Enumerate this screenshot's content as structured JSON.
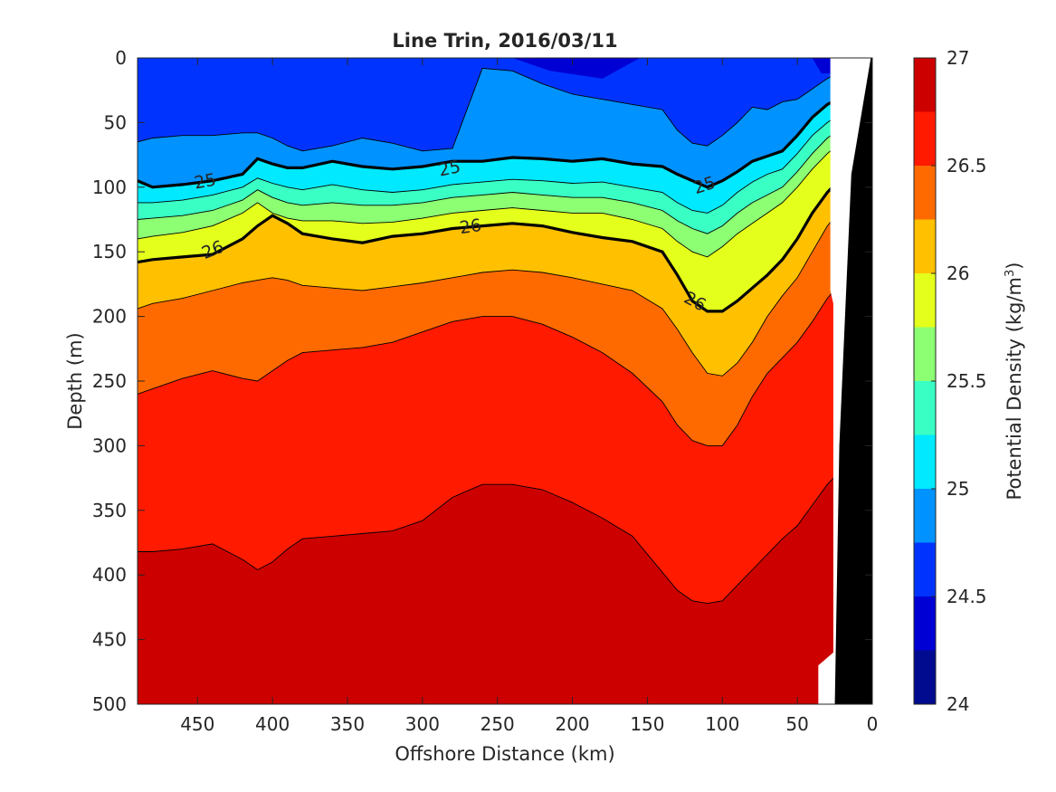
{
  "chart_data": {
    "type": "contourf",
    "title": "Line Trin, 2016/03/11",
    "xlabel": "Offshore Distance (km)",
    "ylabel": "Depth (m)",
    "colorbar_label": "Potential Density (kg/m",
    "colorbar_label_sup": "3",
    "colorbar_label_end": ")",
    "x_reversed": true,
    "y_reversed": true,
    "xlim": [
      490,
      0
    ],
    "ylim": [
      500,
      0
    ],
    "x_ticks": [
      450,
      400,
      350,
      300,
      250,
      200,
      150,
      100,
      50,
      0
    ],
    "x_tick_labels": [
      "450",
      "400",
      "350",
      "300",
      "250",
      "200",
      "150",
      "100",
      "50",
      "0"
    ],
    "y_ticks": [
      0,
      50,
      100,
      150,
      200,
      250,
      300,
      350,
      400,
      450,
      500
    ],
    "y_tick_labels": [
      "0",
      "50",
      "100",
      "150",
      "200",
      "250",
      "300",
      "350",
      "400",
      "450",
      "500"
    ],
    "colorbar_range": [
      24,
      27
    ],
    "colorbar_ticks": [
      27,
      26.5,
      26,
      25.5,
      25,
      24.5,
      24
    ],
    "colorbar_tick_labels": [
      "27",
      "26.5",
      "26",
      "25.5",
      "25",
      "24.5",
      "24"
    ],
    "levels": [
      24.25,
      24.5,
      24.75,
      25,
      25.25,
      25.5,
      25.75,
      26,
      26.25,
      26.5,
      26.75
    ],
    "level_colors": [
      "#000b90",
      "#0000d5",
      "#0034fe",
      "#0092fe",
      "#00e9ff",
      "#39ffc5",
      "#8cff73",
      "#e4ff1b",
      "#ffc000",
      "#ff6a00",
      "#ff1a00",
      "#cd0000"
    ],
    "labeled_contours": [
      {
        "value": 25,
        "label": "25"
      },
      {
        "value": 26,
        "label": "26"
      }
    ],
    "isopycnal_depths": {
      "x_km": [
        490,
        480,
        460,
        440,
        420,
        410,
        400,
        390,
        380,
        360,
        340,
        320,
        300,
        280,
        260,
        240,
        220,
        200,
        180,
        160,
        140,
        130,
        120,
        110,
        100,
        90,
        80,
        70,
        60,
        50,
        40,
        30,
        20
      ],
      "sigma_24_75": [
        65,
        62,
        60,
        60,
        58,
        58,
        62,
        68,
        72,
        68,
        62,
        66,
        72,
        70,
        8,
        10,
        20,
        28,
        32,
        36,
        40,
        56,
        66,
        68,
        60,
        50,
        38,
        40,
        34,
        32,
        24,
        16,
        10
      ],
      "sigma_25_00": [
        95,
        100,
        98,
        95,
        90,
        78,
        82,
        85,
        85,
        80,
        84,
        86,
        84,
        80,
        80,
        77,
        78,
        80,
        78,
        82,
        84,
        90,
        95,
        100,
        95,
        88,
        80,
        76,
        72,
        60,
        46,
        36,
        30
      ],
      "sigma_25_25": [
        112,
        112,
        110,
        106,
        100,
        93,
        97,
        100,
        102,
        98,
        102,
        104,
        102,
        98,
        96,
        94,
        95,
        97,
        96,
        100,
        104,
        112,
        118,
        120,
        114,
        104,
        96,
        90,
        86,
        74,
        60,
        50,
        42
      ],
      "sigma_25_50": [
        125,
        124,
        122,
        118,
        110,
        102,
        108,
        112,
        114,
        112,
        114,
        114,
        112,
        108,
        106,
        104,
        106,
        108,
        108,
        112,
        118,
        126,
        132,
        136,
        130,
        120,
        112,
        106,
        100,
        88,
        74,
        62,
        54
      ],
      "sigma_25_75": [
        140,
        138,
        135,
        130,
        120,
        112,
        120,
        124,
        126,
        126,
        128,
        127,
        124,
        120,
        118,
        116,
        118,
        120,
        120,
        125,
        132,
        142,
        150,
        154,
        146,
        136,
        128,
        120,
        112,
        100,
        86,
        74,
        64
      ],
      "sigma_26_00": [
        158,
        156,
        154,
        152,
        140,
        130,
        122,
        128,
        136,
        140,
        143,
        138,
        136,
        132,
        130,
        128,
        130,
        135,
        139,
        142,
        150,
        168,
        188,
        196,
        196,
        188,
        178,
        168,
        156,
        140,
        120,
        104,
        92
      ],
      "sigma_26_25": [
        194,
        190,
        186,
        180,
        174,
        172,
        170,
        172,
        176,
        178,
        180,
        177,
        174,
        170,
        166,
        164,
        166,
        170,
        175,
        180,
        194,
        210,
        228,
        244,
        246,
        236,
        220,
        200,
        184,
        170,
        150,
        130,
        116
      ],
      "sigma_26_50": [
        260,
        256,
        248,
        242,
        248,
        250,
        242,
        234,
        228,
        226,
        224,
        220,
        212,
        204,
        200,
        200,
        206,
        216,
        228,
        244,
        266,
        284,
        296,
        300,
        300,
        284,
        262,
        244,
        232,
        220,
        204,
        186,
        172
      ],
      "sigma_26_75": [
        382,
        382,
        380,
        376,
        388,
        396,
        390,
        380,
        372,
        370,
        368,
        366,
        358,
        340,
        330,
        330,
        334,
        344,
        356,
        370,
        398,
        412,
        420,
        422,
        420,
        408,
        396,
        384,
        372,
        362,
        346,
        330,
        318
      ]
    },
    "bathymetry_mask": {
      "white_gap_x_km": [
        40,
        30
      ],
      "seafloor_color": "#000000"
    }
  }
}
